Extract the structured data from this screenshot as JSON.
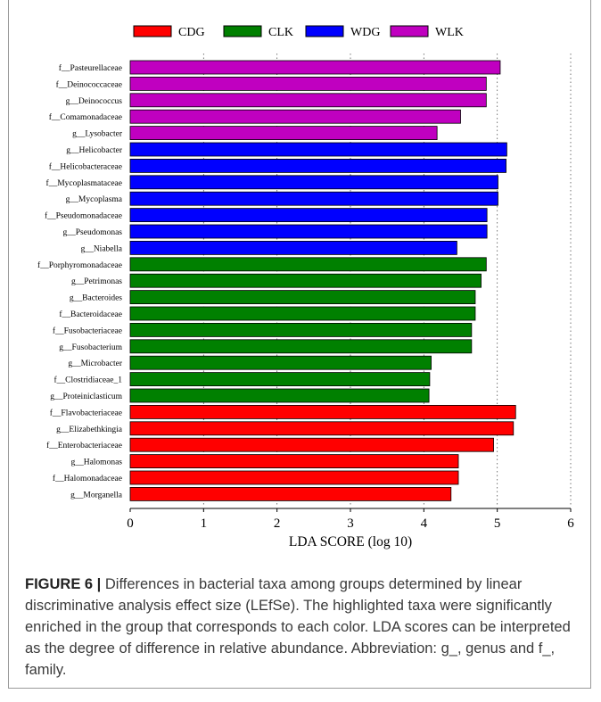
{
  "chart_data": {
    "type": "bar",
    "orientation": "horizontal",
    "xlabel": "LDA SCORE (log 10)",
    "xlim": [
      0,
      6
    ],
    "xticks": [
      "0",
      "1",
      "2",
      "3",
      "4",
      "5",
      "6"
    ],
    "grid": "vertical-dashed",
    "legend_position": "top",
    "legend": [
      {
        "name": "CDG",
        "color": "#ff0000"
      },
      {
        "name": "CLK",
        "color": "#008000"
      },
      {
        "name": "WDG",
        "color": "#0000ff"
      },
      {
        "name": "WLK",
        "color": "#c000c0"
      }
    ],
    "bars": [
      {
        "label": "f__Pasteurellaceae",
        "value": 5.04,
        "group": "WLK"
      },
      {
        "label": "f__Deinococcaceae",
        "value": 4.85,
        "group": "WLK"
      },
      {
        "label": "g__Deinococcus",
        "value": 4.85,
        "group": "WLK"
      },
      {
        "label": "f__Comamonadaceae",
        "value": 4.5,
        "group": "WLK"
      },
      {
        "label": "g__Lysobacter",
        "value": 4.18,
        "group": "WLK"
      },
      {
        "label": "g__Helicobacter",
        "value": 5.13,
        "group": "WDG"
      },
      {
        "label": "f__Helicobacteraceae",
        "value": 5.12,
        "group": "WDG"
      },
      {
        "label": "f__Mycoplasmataceae",
        "value": 5.01,
        "group": "WDG"
      },
      {
        "label": "g__Mycoplasma",
        "value": 5.01,
        "group": "WDG"
      },
      {
        "label": "f__Pseudomonadaceae",
        "value": 4.86,
        "group": "WDG"
      },
      {
        "label": "g__Pseudomonas",
        "value": 4.86,
        "group": "WDG"
      },
      {
        "label": "g__Niabella",
        "value": 4.45,
        "group": "WDG"
      },
      {
        "label": "f__Porphyromonadaceae",
        "value": 4.85,
        "group": "CLK"
      },
      {
        "label": "g__Petrimonas",
        "value": 4.78,
        "group": "CLK"
      },
      {
        "label": "g__Bacteroides",
        "value": 4.7,
        "group": "CLK"
      },
      {
        "label": "f__Bacteroidaceae",
        "value": 4.7,
        "group": "CLK"
      },
      {
        "label": "f__Fusobacteriaceae",
        "value": 4.65,
        "group": "CLK"
      },
      {
        "label": "g__Fusobacterium",
        "value": 4.65,
        "group": "CLK"
      },
      {
        "label": "g__Microbacter",
        "value": 4.1,
        "group": "CLK"
      },
      {
        "label": "f__Clostridiaceae_1",
        "value": 4.08,
        "group": "CLK"
      },
      {
        "label": "g__Proteiniclasticum",
        "value": 4.07,
        "group": "CLK"
      },
      {
        "label": "f__Flavobacteriaceae",
        "value": 5.25,
        "group": "CDG"
      },
      {
        "label": "g__Elizabethkingia",
        "value": 5.22,
        "group": "CDG"
      },
      {
        "label": "f__Enterobacteriaceae",
        "value": 4.95,
        "group": "CDG"
      },
      {
        "label": "g__Halomonas",
        "value": 4.47,
        "group": "CDG"
      },
      {
        "label": "f__Halomonadaceae",
        "value": 4.47,
        "group": "CDG"
      },
      {
        "label": "g__Morganella",
        "value": 4.37,
        "group": "CDG"
      }
    ]
  },
  "caption": {
    "lead": "FIGURE 6 |",
    "text": " Differences in bacterial taxa among groups determined by linear discriminative analysis effect size (LEfSe). The highlighted taxa were significantly enriched in the group that corresponds to each color. LDA scores can be interpreted as the degree of difference in relative abundance. Abbreviation: g_, genus and f_, family."
  }
}
